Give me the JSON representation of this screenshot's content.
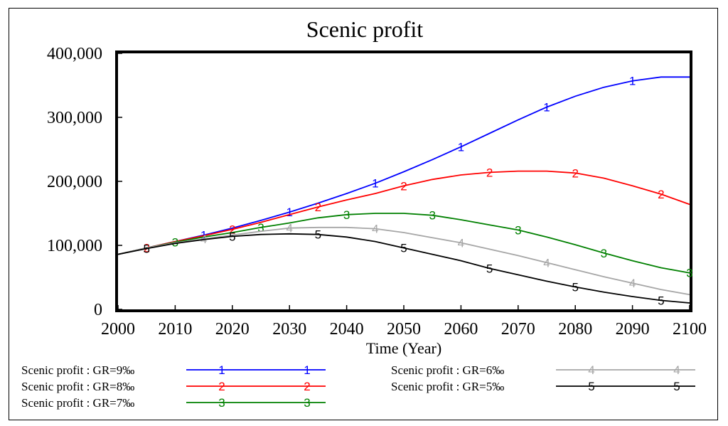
{
  "chart_data": {
    "type": "line",
    "title": "Scenic profit",
    "xlabel": "Time (Year)",
    "ylabel": "",
    "xlim": [
      2000,
      2100
    ],
    "ylim": [
      0,
      400000
    ],
    "x_ticks": [
      2000,
      2010,
      2020,
      2030,
      2040,
      2050,
      2060,
      2070,
      2080,
      2090,
      2100
    ],
    "x_tick_labels": [
      "2000",
      "2010",
      "2020",
      "2030",
      "2040",
      "2050",
      "2060",
      "2070",
      "2080",
      "2090",
      "2100"
    ],
    "y_ticks": [
      0,
      100000,
      200000,
      300000,
      400000
    ],
    "y_tick_labels": [
      "0",
      "100,000",
      "200,000",
      "300,000",
      "400,000"
    ],
    "grid": false,
    "legend_position": "bottom",
    "x": [
      2000,
      2005,
      2010,
      2015,
      2020,
      2025,
      2030,
      2035,
      2040,
      2045,
      2050,
      2055,
      2060,
      2065,
      2070,
      2075,
      2080,
      2085,
      2090,
      2095,
      2100
    ],
    "series": [
      {
        "name": "Scenic profit : GR=9‰",
        "marker": "1",
        "color": "#0000ff",
        "values": [
          86000,
          96000,
          106000,
          116000,
          127000,
          139000,
          152000,
          166000,
          181000,
          197000,
          215000,
          234000,
          254000,
          275000,
          296000,
          316000,
          333000,
          347000,
          357000,
          363000,
          363000
        ]
      },
      {
        "name": "Scenic profit : GR=8‰",
        "marker": "2",
        "color": "#ff0000",
        "values": [
          86000,
          96000,
          106000,
          115000,
          125000,
          136000,
          148000,
          160000,
          171000,
          181000,
          193000,
          203000,
          210000,
          214000,
          216000,
          216000,
          213000,
          205000,
          193000,
          180000,
          164000
        ]
      },
      {
        "name": "Scenic profit : GR=7‰",
        "marker": "3",
        "color": "#008000",
        "values": [
          86000,
          96000,
          105000,
          113000,
          120000,
          128000,
          135000,
          143000,
          148000,
          150000,
          150000,
          147000,
          140000,
          132000,
          124000,
          113000,
          101000,
          88000,
          76000,
          65000,
          57000
        ]
      },
      {
        "name": "Scenic profit : GR=6‰",
        "marker": "4",
        "color": "#a6a6a6",
        "values": [
          86000,
          96000,
          104000,
          110000,
          116000,
          122000,
          127000,
          128000,
          128000,
          126000,
          120000,
          112000,
          104000,
          94000,
          84000,
          73000,
          62000,
          51000,
          41000,
          31000,
          23000
        ]
      },
      {
        "name": "Scenic profit : GR=5‰",
        "marker": "5",
        "color": "#000000",
        "values": [
          86000,
          95000,
          103000,
          109000,
          114000,
          117000,
          118000,
          117000,
          113000,
          106000,
          96000,
          86000,
          76000,
          64000,
          54000,
          44000,
          35000,
          27000,
          20000,
          14000,
          10000
        ]
      }
    ]
  }
}
